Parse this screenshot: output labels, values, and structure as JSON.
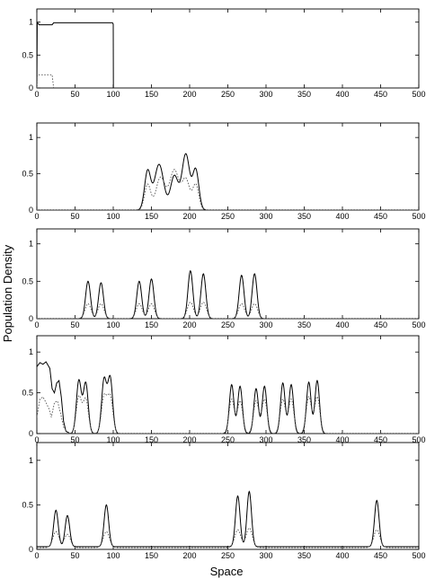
{
  "figure": {
    "ylabel": "Population Density",
    "xlabel": "Space"
  },
  "chart_data": [
    {
      "type": "line",
      "xlim": [
        0,
        500
      ],
      "ylim": [
        0,
        1.2
      ],
      "xticks": [
        "0",
        "50",
        "100",
        "150",
        "200",
        "250",
        "300",
        "350",
        "400",
        "450",
        "500"
      ],
      "yticks": [
        "0",
        "0.5",
        "1"
      ],
      "series": [
        {
          "style": "solid",
          "points": [
            [
              0,
              0
            ],
            [
              0.5,
              0.98
            ],
            [
              1,
              0.99
            ],
            [
              3,
              0.96
            ],
            [
              20,
              0.96
            ],
            [
              22,
              0.99
            ],
            [
              99,
              0.99
            ],
            [
              100,
              0.97
            ],
            [
              100.2,
              0
            ]
          ]
        },
        {
          "style": "dotted",
          "points": [
            [
              0,
              0
            ],
            [
              0.6,
              0.2
            ],
            [
              20,
              0.2
            ],
            [
              22,
              0
            ]
          ]
        }
      ]
    },
    {
      "type": "line",
      "xlim": [
        0,
        500
      ],
      "ylim": [
        0,
        1.2
      ],
      "xticks": [
        "0",
        "50",
        "100",
        "150",
        "200",
        "250",
        "300",
        "350",
        "400",
        "450",
        "500"
      ],
      "yticks": [
        "0",
        "0.5",
        "1"
      ],
      "series": [
        {
          "style": "solid",
          "peaks": [
            [
              145,
              0.53,
              4
            ],
            [
              160,
              0.63,
              6
            ],
            [
              180,
              0.47,
              5
            ],
            [
              195,
              0.77,
              5
            ],
            [
              208,
              0.55,
              4
            ]
          ]
        },
        {
          "style": "dotted",
          "peaks": [
            [
              145,
              0.35,
              4
            ],
            [
              162,
              0.45,
              6
            ],
            [
              180,
              0.55,
              6
            ],
            [
              195,
              0.42,
              5
            ],
            [
              208,
              0.35,
              4
            ]
          ]
        }
      ]
    },
    {
      "type": "line",
      "xlim": [
        0,
        500
      ],
      "ylim": [
        0,
        1.2
      ],
      "xticks": [
        "0",
        "50",
        "100",
        "150",
        "200",
        "250",
        "300",
        "350",
        "400",
        "450",
        "500"
      ],
      "yticks": [
        "0",
        "0.5",
        "1"
      ],
      "series": [
        {
          "style": "solid",
          "peaks": [
            [
              67,
              0.5,
              3.2
            ],
            [
              84,
              0.48,
              3.2
            ],
            [
              134,
              0.5,
              3.2
            ],
            [
              150,
              0.53,
              3.2
            ],
            [
              201,
              0.64,
              3.2
            ],
            [
              218,
              0.6,
              3.2
            ],
            [
              268,
              0.58,
              3.2
            ],
            [
              285,
              0.6,
              3.2
            ]
          ]
        },
        {
          "style": "dotted",
          "peaks": [
            [
              67,
              0.2,
              4
            ],
            [
              84,
              0.2,
              4
            ],
            [
              134,
              0.2,
              4
            ],
            [
              150,
              0.2,
              4
            ],
            [
              201,
              0.22,
              4
            ],
            [
              218,
              0.22,
              4
            ],
            [
              268,
              0.2,
              4
            ],
            [
              285,
              0.2,
              4
            ]
          ]
        }
      ]
    },
    {
      "type": "line",
      "xlim": [
        0,
        500
      ],
      "ylim": [
        0,
        1.2
      ],
      "xticks": [
        "0",
        "50",
        "100",
        "150",
        "200",
        "250",
        "300",
        "350",
        "400",
        "450",
        "500"
      ],
      "yticks": [
        "0",
        "0.5",
        "1"
      ],
      "series": [
        {
          "style": "solid",
          "points": [
            [
              0,
              0.82
            ],
            [
              4,
              0.87
            ],
            [
              8,
              0.85
            ],
            [
              12,
              0.88
            ],
            [
              17,
              0.8
            ],
            [
              20,
              0.55
            ],
            [
              23,
              0.5
            ],
            [
              26,
              0.62
            ],
            [
              29,
              0.65
            ],
            [
              32,
              0.45
            ],
            [
              35,
              0.15
            ],
            [
              38,
              0.03
            ],
            [
              42,
              0.01
            ]
          ],
          "peaks": [
            [
              55,
              0.65,
              3.2
            ],
            [
              64,
              0.62,
              3.2
            ],
            [
              88,
              0.66,
              3.2
            ],
            [
              96,
              0.68,
              3.2
            ],
            [
              255,
              0.6,
              3
            ],
            [
              266,
              0.58,
              3
            ],
            [
              287,
              0.55,
              3
            ],
            [
              298,
              0.58,
              3
            ],
            [
              322,
              0.62,
              3
            ],
            [
              333,
              0.6,
              3
            ],
            [
              356,
              0.63,
              3
            ],
            [
              367,
              0.65,
              3
            ]
          ]
        },
        {
          "style": "dotted",
          "points": [
            [
              0,
              0.2
            ],
            [
              4,
              0.42
            ],
            [
              8,
              0.45
            ],
            [
              12,
              0.38
            ],
            [
              16,
              0.3
            ],
            [
              19,
              0.2
            ],
            [
              23,
              0.38
            ],
            [
              27,
              0.4
            ],
            [
              31,
              0.25
            ],
            [
              35,
              0.08
            ],
            [
              40,
              0.01
            ]
          ],
          "peaks": [
            [
              55,
              0.45,
              3.5
            ],
            [
              64,
              0.42,
              3.5
            ],
            [
              88,
              0.45,
              3.5
            ],
            [
              96,
              0.45,
              3.5
            ],
            [
              255,
              0.42,
              3.5
            ],
            [
              266,
              0.4,
              3.5
            ],
            [
              287,
              0.4,
              3.5
            ],
            [
              298,
              0.42,
              3.5
            ],
            [
              322,
              0.42,
              3.5
            ],
            [
              333,
              0.42,
              3.5
            ],
            [
              356,
              0.45,
              3.5
            ],
            [
              367,
              0.45,
              3.5
            ]
          ]
        }
      ]
    },
    {
      "type": "line",
      "xlim": [
        0,
        500
      ],
      "ylim": [
        0,
        1.2
      ],
      "xticks": [
        "0",
        "50",
        "100",
        "150",
        "200",
        "250",
        "300",
        "350",
        "400",
        "450",
        "500"
      ],
      "yticks": [
        "0",
        "0.5",
        "1"
      ],
      "series": [
        {
          "style": "solid",
          "baseline": 0.03,
          "peaks": [
            [
              25,
              0.41,
              3
            ],
            [
              40,
              0.35,
              3
            ],
            [
              91,
              0.47,
              3
            ],
            [
              263,
              0.57,
              3
            ],
            [
              278,
              0.62,
              3
            ],
            [
              445,
              0.52,
              3
            ]
          ]
        },
        {
          "style": "dotted",
          "baseline": 0.02,
          "peaks": [
            [
              25,
              0.18,
              4
            ],
            [
              40,
              0.15,
              4
            ],
            [
              91,
              0.18,
              4
            ],
            [
              263,
              0.2,
              4
            ],
            [
              278,
              0.22,
              4
            ],
            [
              445,
              0.2,
              4
            ]
          ]
        }
      ]
    }
  ]
}
